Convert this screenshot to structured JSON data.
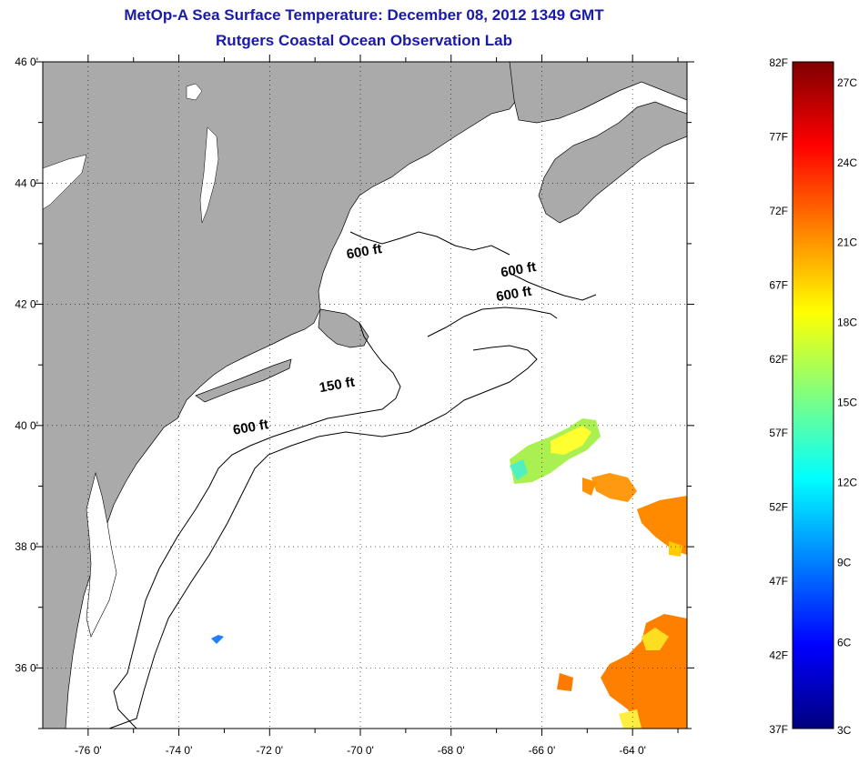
{
  "title": "MetOp-A Sea Surface Temperature:  December 08, 2012 1349 GMT",
  "subtitle": "Rutgers Coastal Ocean Observation Lab",
  "map": {
    "lon_range": [
      -77,
      -62.8
    ],
    "lat_range": [
      35,
      46
    ],
    "lon_ticks": [
      -76,
      -74,
      -72,
      -70,
      -68,
      -66,
      -64
    ],
    "lat_ticks": [
      46,
      44,
      42,
      40,
      38,
      36
    ],
    "lon_tick_labels": [
      "-76 0'",
      "-74 0'",
      "-72 0'",
      "-70 0'",
      "-68 0'",
      "-66 0'",
      "-64 0'"
    ],
    "lat_tick_labels": [
      "46 0'",
      "44 0'",
      "42 0'",
      "40 0'",
      "38 0'",
      "36 0'"
    ],
    "grid": "dotted",
    "land_color": "#aaaaaa",
    "ocean_color": "#ffffff"
  },
  "contour_labels": [
    {
      "text": "600 ft",
      "lon": -69.9,
      "lat": 42.8
    },
    {
      "text": "600 ft",
      "lon": -66.5,
      "lat": 42.5
    },
    {
      "text": "600 ft",
      "lon": -66.6,
      "lat": 42.1
    },
    {
      "text": "150 ft",
      "lon": -70.5,
      "lat": 40.6
    },
    {
      "text": "600 ft",
      "lon": -72.4,
      "lat": 39.9
    }
  ],
  "colorbar": {
    "colors": [
      "#00007f",
      "#0000ff",
      "#0080ff",
      "#00ffff",
      "#80ff80",
      "#ffff00",
      "#ff8000",
      "#ff0000",
      "#7f0000"
    ],
    "f_labels": [
      "82F",
      "77F",
      "72F",
      "67F",
      "62F",
      "57F",
      "52F",
      "47F",
      "42F",
      "37F"
    ],
    "f_values": [
      82,
      77,
      72,
      67,
      62,
      57,
      52,
      47,
      42,
      37
    ],
    "c_labels": [
      "27C",
      "24C",
      "21C",
      "18C",
      "15C",
      "12C",
      "9C",
      "6C",
      "3C"
    ],
    "c_values": [
      27,
      24,
      21,
      18,
      15,
      12,
      9,
      6,
      3
    ],
    "range_f": [
      37,
      82
    ]
  }
}
